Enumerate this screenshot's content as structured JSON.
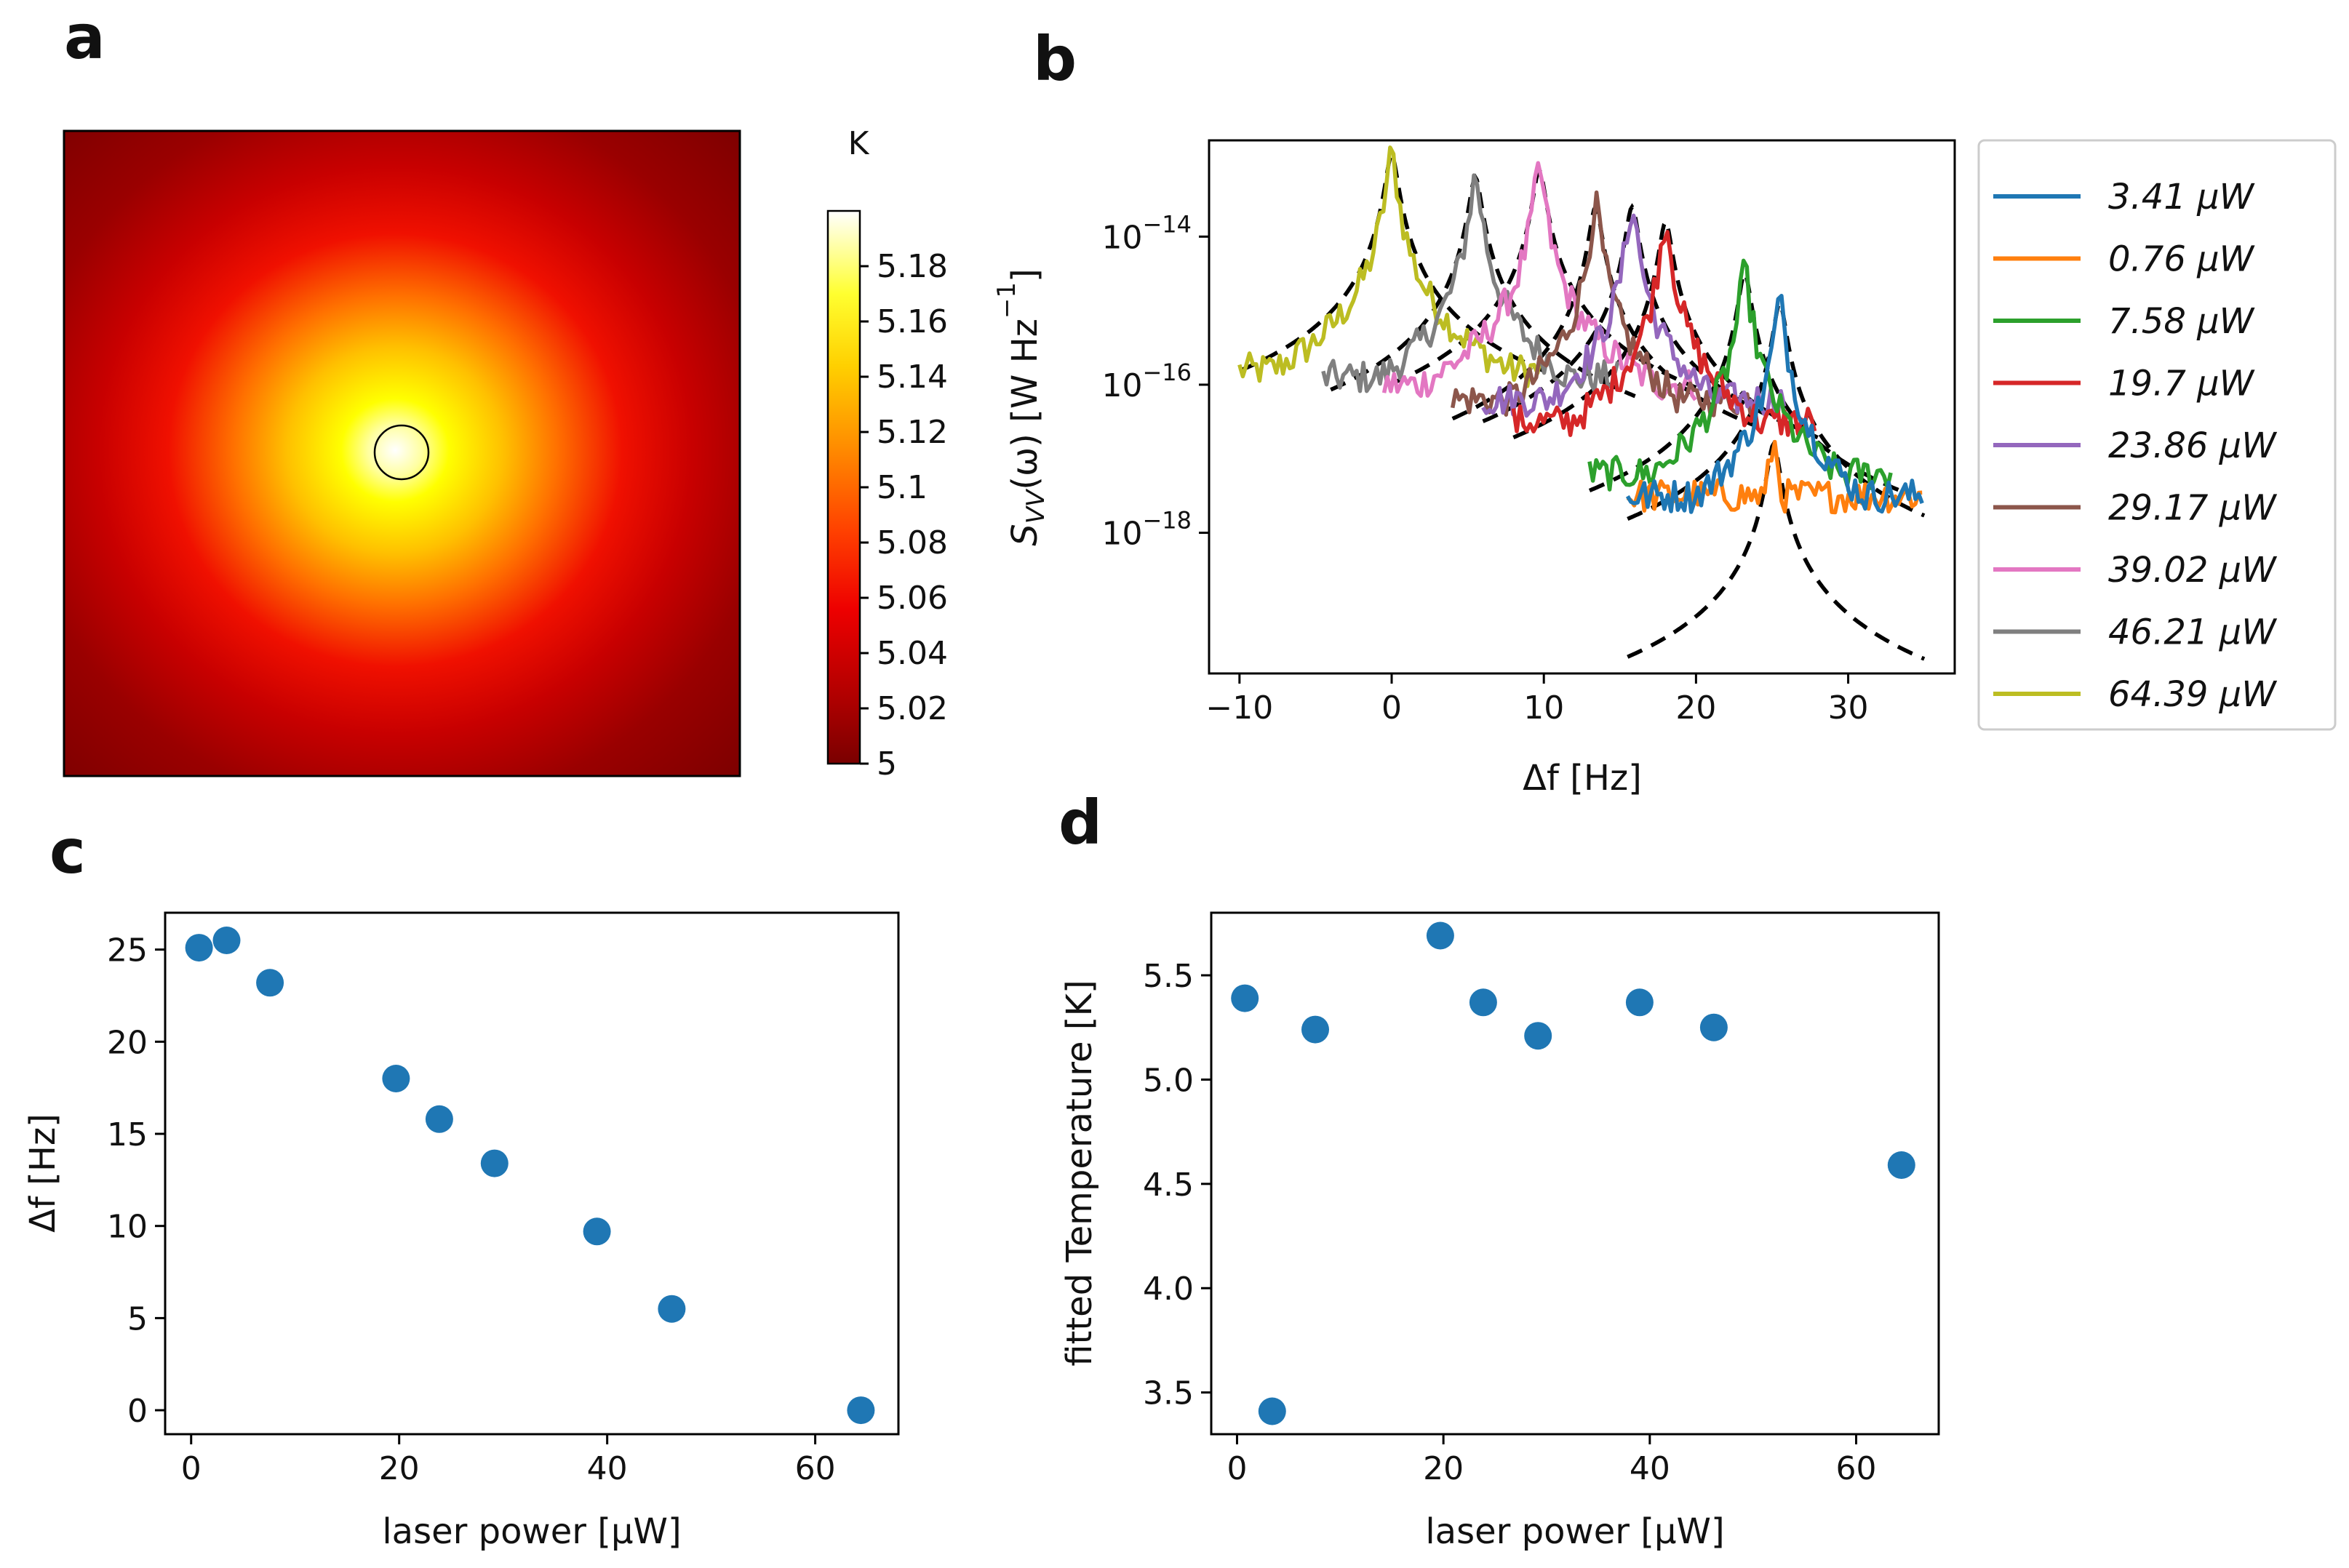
{
  "panels": {
    "a": {
      "letter": "a",
      "colorbar_unit": "K",
      "colorbar_range": [
        5.0,
        5.2
      ],
      "colorbar_ticks": [
        "5.18",
        "5.16",
        "5.14",
        "5.12",
        "5.1",
        "5.08",
        "5.06",
        "5.04",
        "5.02",
        "5"
      ]
    },
    "b": {
      "letter": "b"
    },
    "c": {
      "letter": "c"
    },
    "d": {
      "letter": "d"
    }
  },
  "chart_data": [
    {
      "id": "a",
      "type": "heatmap",
      "title": "",
      "colorbar_label": "K",
      "value_range": [
        5.0,
        5.2
      ],
      "note": "Simulated temperature map: hot spot centered on a small circle, radially decaying from ~5.2 K to 5 K"
    },
    {
      "id": "b",
      "type": "line",
      "xlabel": "Δf [Hz]",
      "ylabel": "S_VV(ω) [W Hz^-1]",
      "ylabel_parts": {
        "main": "S",
        "sub": "VV",
        "arg": "(ω) [W Hz",
        "sup": "−1",
        "end": "]"
      },
      "xlim": [
        -12,
        37
      ],
      "ylim_log10": [
        -19.9,
        -12.7
      ],
      "xticks": [
        -10,
        0,
        10,
        20,
        30
      ],
      "xtick_labels": [
        "−10",
        "0",
        "10",
        "20",
        "30"
      ],
      "yticks_log10": [
        -14,
        -16,
        -18
      ],
      "ytick_base": "10",
      "ytick_exponents": [
        "−14",
        "−16",
        "−18"
      ],
      "legend_position": "outside right",
      "series": [
        {
          "name": "3.41 μW",
          "power": 3.41,
          "color": "#1f77b4",
          "peak_hz": 25.5,
          "peak_log": -14.9,
          "xrange": [
            15.5,
            35
          ],
          "floor_log": -17.5
        },
        {
          "name": "0.76 μW",
          "power": 0.76,
          "color": "#ff7f0e",
          "peak_hz": 25.1,
          "peak_log": -16.8,
          "xrange": [
            15.5,
            35
          ],
          "floor_log": -17.5
        },
        {
          "name": "7.58 μW",
          "power": 7.58,
          "color": "#2ca02c",
          "peak_hz": 23.2,
          "peak_log": -14.5,
          "xrange": [
            13,
            33
          ],
          "floor_log": -17.2
        },
        {
          "name": "19.7 μW",
          "power": 19.7,
          "color": "#d62728",
          "peak_hz": 18.0,
          "peak_log": -13.8,
          "xrange": [
            8,
            28
          ],
          "floor_log": -16.5
        },
        {
          "name": "23.86 μW",
          "power": 23.86,
          "color": "#9467bd",
          "peak_hz": 15.8,
          "peak_log": -13.6,
          "xrange": [
            6,
            26
          ],
          "floor_log": -16.2
        },
        {
          "name": "29.17 μW",
          "power": 29.17,
          "color": "#8c564b",
          "peak_hz": 13.4,
          "peak_log": -13.6,
          "xrange": [
            4,
            24
          ],
          "floor_log": -16.2
        },
        {
          "name": "39.02 μW",
          "power": 39.02,
          "color": "#e377c2",
          "peak_hz": 9.7,
          "peak_log": -13.1,
          "xrange": [
            -0.5,
            20
          ],
          "floor_log": -16.0
        },
        {
          "name": "46.21 μW",
          "power": 46.21,
          "color": "#7f7f7f",
          "peak_hz": 5.5,
          "peak_log": -13.2,
          "xrange": [
            -4.5,
            15
          ],
          "floor_log": -15.9
        },
        {
          "name": "64.39 μW",
          "power": 64.39,
          "color": "#bcbd22",
          "peak_hz": 0.0,
          "peak_log": -12.9,
          "xrange": [
            -10,
            10
          ],
          "floor_log": -15.8
        }
      ],
      "fits_dashed": [
        {
          "center_hz": 0.0,
          "peak_log": -12.9,
          "xrange": [
            -10,
            10
          ]
        },
        {
          "center_hz": 5.5,
          "peak_log": -13.2,
          "xrange": [
            -4,
            16
          ]
        },
        {
          "center_hz": 9.7,
          "peak_log": -13.1,
          "xrange": [
            0,
            20
          ]
        },
        {
          "center_hz": 13.4,
          "peak_log": -13.6,
          "xrange": [
            4,
            24
          ]
        },
        {
          "center_hz": 15.8,
          "peak_log": -13.6,
          "xrange": [
            6,
            26
          ]
        },
        {
          "center_hz": 18.0,
          "peak_log": -13.8,
          "xrange": [
            8,
            28
          ]
        },
        {
          "center_hz": 23.2,
          "peak_log": -14.5,
          "xrange": [
            13,
            34
          ]
        },
        {
          "center_hz": 25.5,
          "peak_log": -14.9,
          "xrange": [
            15.5,
            35
          ]
        },
        {
          "center_hz": 25.1,
          "peak_log": -16.8,
          "xrange": [
            15.5,
            35
          ]
        }
      ]
    },
    {
      "id": "c",
      "type": "scatter",
      "xlabel": "laser power [μW]",
      "ylabel": "Δf [Hz]",
      "xlim": [
        -2.5,
        68
      ],
      "ylim": [
        -1.3,
        27
      ],
      "xticks": [
        0,
        20,
        40,
        60
      ],
      "yticks": [
        0,
        5,
        10,
        15,
        20,
        25
      ],
      "x": [
        0.76,
        3.41,
        7.58,
        19.7,
        23.86,
        29.17,
        39.02,
        46.21,
        64.39
      ],
      "y": [
        25.1,
        25.5,
        23.2,
        18.0,
        15.8,
        13.4,
        9.7,
        5.5,
        0.0
      ]
    },
    {
      "id": "d",
      "type": "scatter",
      "xlabel": "laser power [μW]",
      "ylabel": "fitted Temperature [K]",
      "xlim": [
        -2.5,
        68
      ],
      "ylim": [
        3.3,
        5.8
      ],
      "xticks": [
        0,
        20,
        40,
        60
      ],
      "yticks": [
        3.5,
        4.0,
        4.5,
        5.0,
        5.5
      ],
      "ytick_labels": [
        "3.5",
        "4.0",
        "4.5",
        "5.0",
        "5.5"
      ],
      "x": [
        0.76,
        3.41,
        7.58,
        19.7,
        23.86,
        29.17,
        39.02,
        46.21,
        64.39
      ],
      "y": [
        5.39,
        3.41,
        5.24,
        5.69,
        5.37,
        5.21,
        5.37,
        5.25,
        4.59
      ]
    }
  ]
}
